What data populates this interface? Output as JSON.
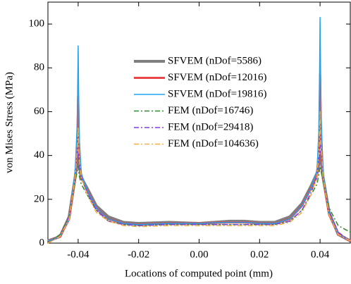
{
  "chart_data": {
    "type": "line",
    "x_label": "Locations of computed point (mm)",
    "y_label": "von Mises Stress (MPa)",
    "x": [
      -0.05,
      -0.046,
      -0.043,
      -0.041,
      -0.0403,
      -0.04,
      -0.0397,
      -0.039,
      -0.037,
      -0.034,
      -0.03,
      -0.025,
      -0.02,
      -0.01,
      0,
      0.01,
      0.015,
      0.02,
      0.025,
      0.03,
      0.034,
      0.037,
      0.039,
      0.0397,
      0.04,
      0.0403,
      0.041,
      0.043,
      0.046,
      0.05
    ],
    "xlim": [
      -0.05,
      0.05
    ],
    "ylim": [
      0,
      110
    ],
    "xticks": [
      -0.04,
      -0.02,
      {
        "value": 0,
        "label": "0.00"
      },
      0.02,
      0.04
    ],
    "yticks": [
      0,
      20,
      40,
      60,
      80,
      100
    ],
    "series": [
      {
        "name": "SFVEM (nDof=5586)",
        "color": "#7f7f7f",
        "values": [
          1,
          3,
          12,
          30,
          38,
          40,
          36,
          30,
          25,
          17,
          12,
          9.5,
          9,
          9.5,
          9,
          10,
          10,
          9.5,
          9.5,
          12,
          18,
          26,
          32,
          37,
          40,
          38,
          30,
          14,
          4,
          1
        ]
      },
      {
        "name": "SFVEM (nDof=12016)",
        "color": "#e8474a",
        "values": [
          1,
          3,
          11,
          30,
          45,
          67,
          42,
          30,
          24,
          16,
          11,
          9,
          8.5,
          9,
          9,
          9.5,
          9.5,
          9,
          9,
          11,
          17,
          25,
          31,
          45,
          77,
          50,
          30,
          13,
          4,
          1
        ]
      },
      {
        "name": "SFVEM (nDof=19816)",
        "color": "#1fa5ee",
        "values": [
          1,
          3,
          11,
          32,
          55,
          90,
          50,
          32,
          24,
          16,
          11,
          9,
          8.5,
          9,
          9,
          9.5,
          9.5,
          9,
          9,
          11,
          17,
          25,
          33,
          55,
          103,
          60,
          32,
          13,
          4,
          1
        ]
      },
      {
        "name": "FEM (nDof=16746)",
        "color": "#2e8b2e",
        "values": [
          0,
          4,
          12,
          28,
          33,
          35,
          31,
          27,
          22,
          15,
          10,
          8.5,
          8,
          8.5,
          8.5,
          8.5,
          8.5,
          8.5,
          8.5,
          10,
          15,
          22,
          27,
          32,
          35,
          33,
          28,
          16,
          8,
          5
        ]
      },
      {
        "name": "FEM (nDof=29418)",
        "color": "#7b3fe4",
        "values": [
          0,
          3,
          12,
          30,
          38,
          42,
          36,
          30,
          23,
          15,
          10,
          8.5,
          8,
          8.5,
          8.5,
          8.5,
          8.5,
          8.5,
          8.5,
          10,
          15,
          23,
          30,
          38,
          45,
          39,
          30,
          14,
          5,
          1
        ]
      },
      {
        "name": "FEM (nDof=104636)",
        "color": "#f5b041",
        "values": [
          0,
          3,
          11,
          30,
          42,
          53,
          40,
          30,
          22,
          14,
          10,
          8,
          7.5,
          8,
          8,
          8,
          8,
          8,
          8,
          9.5,
          14,
          22,
          30,
          45,
          60,
          45,
          30,
          13,
          4,
          1
        ]
      }
    ]
  }
}
